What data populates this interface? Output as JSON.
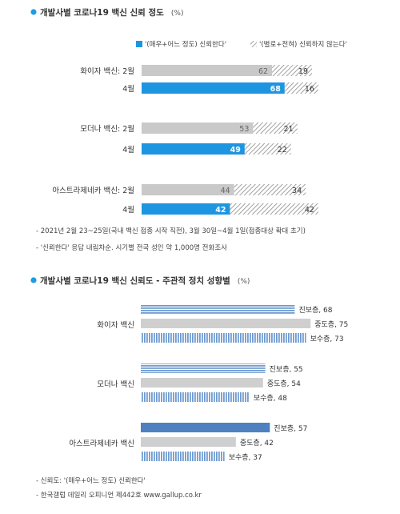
{
  "chart1": {
    "title": "개발사별 코로나19 백신 신뢰 정도",
    "unit": "(%)",
    "legend": {
      "trust": "'(매우+어느 정도) 신뢰한다'",
      "distrust": "'(별로+전혀) 신뢰하지 않는다'"
    },
    "notes": [
      "- 2021년 2월 23~25일(국내 백신 접종 시작 직전), 3월 30일~4월 1일(접종대상 확대 초기)",
      "- '신뢰한다' 응답 내림차순. 시기별 전국 성인 약 1,000명 전화조사"
    ]
  },
  "chart2": {
    "title": "개발사별 코로나19 백신 신뢰도 - 주관적 정치 성향별",
    "unit": "(%)",
    "notes": [
      "- 신뢰도: '(매우+어느 정도) 신뢰한다'",
      "- 한국갤럽 데일리 오피니언 제442호 www.gallup.co.kr"
    ]
  },
  "chart_data": [
    {
      "type": "bar",
      "orientation": "horizontal",
      "stacked": true,
      "title": "개발사별 코로나19 백신 신뢰 정도",
      "unit": "(%)",
      "rows": [
        {
          "group": "화이자 백신",
          "period": "2월",
          "label": "화이자 백신: 2월",
          "trust": 62,
          "distrust": 19,
          "highlight": false
        },
        {
          "group": "화이자 백신",
          "period": "4월",
          "label": "4월",
          "trust": 68,
          "distrust": 16,
          "highlight": true
        },
        {
          "group": "모더나 백신",
          "period": "2월",
          "label": "모더나 백신: 2월",
          "trust": 53,
          "distrust": 21,
          "highlight": false
        },
        {
          "group": "모더나 백신",
          "period": "4월",
          "label": "4월",
          "trust": 49,
          "distrust": 22,
          "highlight": true
        },
        {
          "group": "아스트라제네카 백신",
          "period": "2월",
          "label": "아스트라제네카 백신: 2월",
          "trust": 44,
          "distrust": 34,
          "highlight": false
        },
        {
          "group": "아스트라제네카 백신",
          "period": "4월",
          "label": "4월",
          "trust": 42,
          "distrust": 42,
          "highlight": true
        }
      ],
      "colors": {
        "trust_2월": "#c9c9c9",
        "trust_4월": "#1e95e0",
        "distrust": "hatched gray"
      }
    },
    {
      "type": "bar",
      "orientation": "horizontal",
      "title": "개발사별 코로나19 백신 신뢰도 - 주관적 정치 성향별",
      "unit": "(%)",
      "groups": [
        {
          "name": "화이자 백신",
          "bars": [
            {
              "label": "진보층",
              "value": 68,
              "style": "horizontal-striped-blue"
            },
            {
              "label": "중도층",
              "value": 75,
              "style": "solid-gray"
            },
            {
              "label": "보수층",
              "value": 73,
              "style": "vertical-striped-blue"
            }
          ]
        },
        {
          "name": "모더나 백신",
          "bars": [
            {
              "label": "진보층",
              "value": 55,
              "style": "horizontal-striped-blue"
            },
            {
              "label": "중도층",
              "value": 54,
              "style": "solid-gray"
            },
            {
              "label": "보수층",
              "value": 48,
              "style": "vertical-striped-blue"
            }
          ]
        },
        {
          "name": "아스트라제네카 백신",
          "bars": [
            {
              "label": "진보층",
              "value": 57,
              "style": "solid-blue"
            },
            {
              "label": "중도층",
              "value": 42,
              "style": "solid-gray"
            },
            {
              "label": "보수층",
              "value": 37,
              "style": "vertical-striped-blue"
            }
          ]
        }
      ]
    }
  ]
}
